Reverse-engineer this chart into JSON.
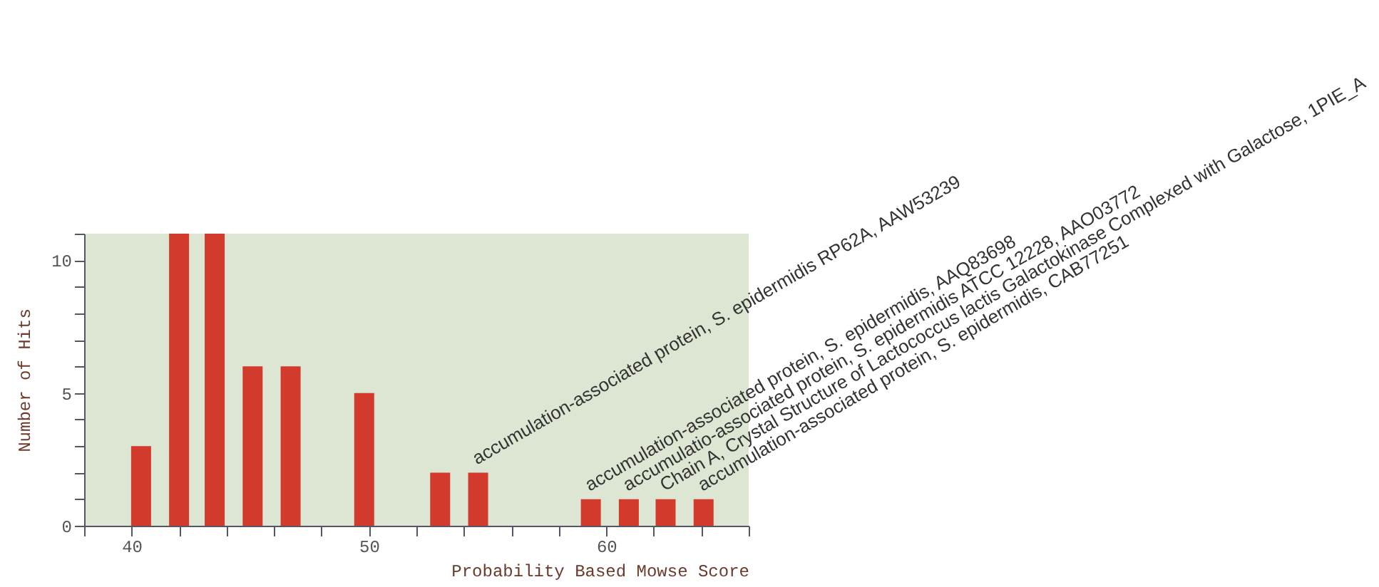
{
  "chart_data": {
    "type": "bar",
    "xlabel": "Probability Based Mowse Score",
    "ylabel": "Number of Hits",
    "x": [
      40.4,
      42.0,
      43.5,
      45.1,
      46.7,
      49.8,
      53.0,
      54.6,
      59.35,
      60.95,
      62.5,
      64.1
    ],
    "values": [
      3,
      11,
      11,
      6,
      6,
      5,
      2,
      2,
      1,
      1,
      1,
      1
    ],
    "color": "#d23a2c",
    "xlim": [
      38,
      66
    ],
    "xticks": [
      {
        "value": 38,
        "label": null
      },
      40,
      {
        "value": 42,
        "label": null
      },
      {
        "value": 44,
        "label": null
      },
      {
        "value": 46,
        "label": null
      },
      {
        "value": 48,
        "label": null
      },
      50,
      {
        "value": 52,
        "label": null
      },
      {
        "value": 54,
        "label": null
      },
      {
        "value": 56,
        "label": null
      },
      {
        "value": 58,
        "label": null
      },
      60,
      {
        "value": 62,
        "label": null
      },
      {
        "value": 64,
        "label": null
      },
      {
        "value": 66,
        "label": null
      }
    ],
    "ylim": [
      0,
      11
    ],
    "yticks": [
      0,
      {
        "value": 1,
        "label": null
      },
      {
        "value": 2,
        "label": null
      },
      {
        "value": 3,
        "label": null
      },
      {
        "value": 4,
        "label": null
      },
      5,
      {
        "value": 6,
        "label": null
      },
      {
        "value": 7,
        "label": null
      },
      {
        "value": 8,
        "label": null
      },
      {
        "value": 9,
        "label": null
      },
      10,
      {
        "value": 11,
        "label": null
      }
    ],
    "annotations": [
      {
        "text": "accumulation-associated protein, S. epidermidis RP62A, AAW53239",
        "x": 54.6,
        "y": 2
      },
      {
        "text": "accumulation-associated protein, S. epidermidis, AAQ83698",
        "x": 59.35,
        "y": 1
      },
      {
        "text": "accumulatio-associated protein, S. epidermidis ATCC 12228, AAO03772",
        "x": 60.95,
        "y": 1
      },
      {
        "text": "Chain A, Crystal Structure of Lactococcus lactis Galactokinase Complexed with Galactose, 1PIE_A",
        "x": 62.5,
        "y": 1
      },
      {
        "text": "accumulation-associated protein, S. epidermidis, CAB77251",
        "x": 64.1,
        "y": 1
      }
    ]
  }
}
